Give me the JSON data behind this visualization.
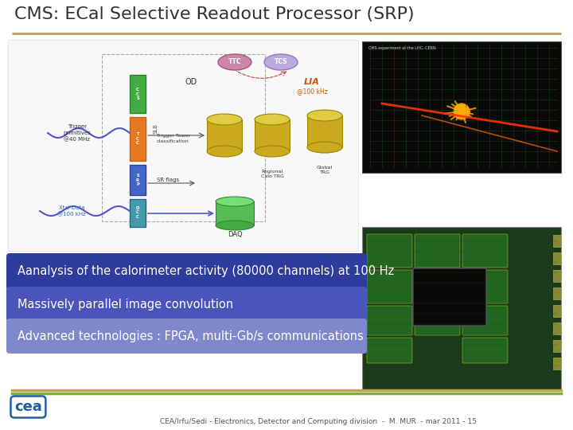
{
  "title": "CMS: ECal Selective Readout Processor (SRP)",
  "title_color": "#333333",
  "title_fontsize": 16,
  "background_color": "#ffffff",
  "top_line_color": "#c8a050",
  "bottom_lines": {
    "top_color": "#c8a050",
    "bottom_color": "#7cb040"
  },
  "bullet_boxes": [
    {
      "text": "Aanalysis of the calorimeter activity (80000 channels) at 100 Hz",
      "bg_color": "#2e3c9e",
      "text_color": "#ffffff",
      "fontsize": 10.5
    },
    {
      "text": "Massively parallel image convolution",
      "bg_color": "#4a55bb",
      "text_color": "#ffffff",
      "fontsize": 10.5
    },
    {
      "text": "Advanced technologies : FPGA, multi-Gb/s communications",
      "bg_color": "#8088cc",
      "text_color": "#ffffff",
      "fontsize": 10.5
    }
  ],
  "footer_text": "CEA/Irfu/Sedi - Electronics, Detector and Computing division  -  M. MUR  - mar 2011 - 15",
  "footer_fontsize": 6.5,
  "footer_color": "#555555",
  "cea_logo_color": "#2060a0"
}
